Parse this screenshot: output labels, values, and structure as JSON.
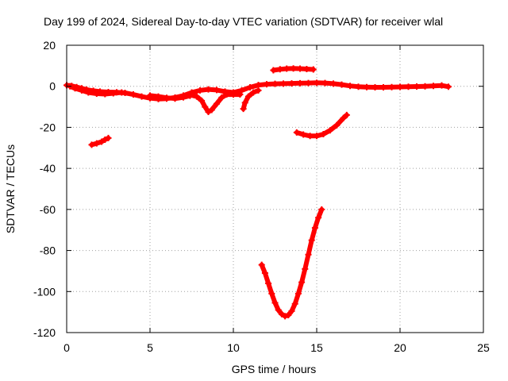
{
  "chart_data": {
    "type": "scatter",
    "title": "Day 199 of 2024, Sidereal Day-to-day VTEC variation (SDTVAR) for receiver wlal",
    "xlabel": "GPS time / hours",
    "ylabel": "SDTVAR / TECUs",
    "xlim": [
      0,
      25
    ],
    "ylim": [
      -120,
      20
    ],
    "xticks": [
      0,
      5,
      10,
      15,
      20,
      25
    ],
    "yticks": [
      20,
      0,
      -20,
      -40,
      -60,
      -80,
      -100,
      -120
    ],
    "grid": true,
    "series_color": "#ff0000",
    "series": [
      {
        "points": [
          [
            0.0,
            0.5
          ],
          [
            0.3,
            0.2
          ],
          [
            0.6,
            -0.4
          ],
          [
            0.9,
            -1.0
          ],
          [
            1.2,
            -1.6
          ],
          [
            1.6,
            -2.2
          ],
          [
            2.0,
            -2.6
          ],
          [
            2.5,
            -2.8
          ],
          [
            3.0,
            -2.9
          ],
          [
            3.5,
            -3.2
          ],
          [
            4.0,
            -4.0
          ],
          [
            4.5,
            -5.0
          ],
          [
            5.0,
            -5.8
          ],
          [
            5.5,
            -6.2
          ],
          [
            6.0,
            -6.0
          ],
          [
            6.5,
            -5.5
          ],
          [
            7.0,
            -4.5
          ],
          [
            7.5,
            -3.0
          ],
          [
            8.0,
            -2.0
          ],
          [
            8.5,
            -1.5
          ],
          [
            9.0,
            -1.8
          ],
          [
            9.5,
            -2.6
          ],
          [
            10.0,
            -3.0
          ],
          [
            10.5,
            -2.0
          ],
          [
            11.0,
            -0.5
          ],
          [
            11.5,
            0.6
          ],
          [
            12.0,
            1.0
          ],
          [
            12.5,
            1.2
          ],
          [
            13.0,
            1.3
          ],
          [
            13.5,
            1.4
          ],
          [
            14.0,
            1.5
          ],
          [
            14.5,
            1.6
          ],
          [
            15.0,
            1.7
          ],
          [
            15.5,
            1.6
          ],
          [
            16.0,
            1.3
          ],
          [
            16.5,
            0.8
          ],
          [
            17.0,
            0.2
          ],
          [
            17.5,
            -0.2
          ],
          [
            18.0,
            -0.4
          ],
          [
            18.5,
            -0.5
          ],
          [
            19.0,
            -0.5
          ],
          [
            19.5,
            -0.4
          ],
          [
            20.0,
            -0.3
          ],
          [
            20.5,
            -0.2
          ],
          [
            21.0,
            -0.1
          ],
          [
            21.5,
            0.0
          ],
          [
            22.0,
            0.2
          ],
          [
            22.5,
            0.4
          ],
          [
            22.9,
            -0.2
          ]
        ]
      },
      {
        "points": [
          [
            0.2,
            0.0
          ],
          [
            0.5,
            -1.0
          ],
          [
            0.9,
            -2.0
          ],
          [
            1.3,
            -3.0
          ],
          [
            1.8,
            -3.6
          ],
          [
            2.3,
            -3.8
          ],
          [
            2.8,
            -3.4
          ],
          [
            3.3,
            -3.0
          ]
        ]
      },
      {
        "points": [
          [
            5.0,
            -4.5
          ],
          [
            5.5,
            -5.0
          ],
          [
            6.0,
            -5.6
          ],
          [
            6.5,
            -6.0
          ],
          [
            7.0,
            -5.4
          ],
          [
            7.4,
            -4.6
          ]
        ]
      },
      {
        "points": [
          [
            7.4,
            -4.2
          ],
          [
            7.8,
            -5.0
          ],
          [
            8.1,
            -7.0
          ],
          [
            8.3,
            -10.0
          ],
          [
            8.5,
            -12.5
          ],
          [
            8.7,
            -11.5
          ],
          [
            9.0,
            -8.5
          ],
          [
            9.3,
            -5.5
          ],
          [
            9.6,
            -4.0
          ],
          [
            10.0,
            -4.0
          ],
          [
            10.4,
            -4.0
          ]
        ]
      },
      {
        "points": [
          [
            10.6,
            -11.0
          ],
          [
            10.7,
            -8.0
          ],
          [
            10.9,
            -5.0
          ],
          [
            11.2,
            -3.0
          ],
          [
            11.5,
            -2.0
          ]
        ]
      },
      {
        "points": [
          [
            1.5,
            -28.5
          ],
          [
            1.8,
            -27.8
          ],
          [
            2.1,
            -27.0
          ],
          [
            2.3,
            -26.0
          ],
          [
            2.5,
            -25.2
          ]
        ]
      },
      {
        "points": [
          [
            12.4,
            7.8
          ],
          [
            12.8,
            8.3
          ],
          [
            13.2,
            8.6
          ],
          [
            13.6,
            8.7
          ],
          [
            14.0,
            8.6
          ],
          [
            14.4,
            8.4
          ],
          [
            14.8,
            8.2
          ]
        ]
      },
      {
        "points": [
          [
            13.8,
            -22.5
          ],
          [
            14.2,
            -23.5
          ],
          [
            14.6,
            -24.2
          ],
          [
            15.0,
            -24.2
          ],
          [
            15.4,
            -23.3
          ],
          [
            15.8,
            -21.5
          ],
          [
            16.2,
            -19.0
          ],
          [
            16.6,
            -15.5
          ],
          [
            16.8,
            -14.0
          ]
        ]
      },
      {
        "points": [
          [
            11.7,
            -87.0
          ],
          [
            11.9,
            -91.0
          ],
          [
            12.1,
            -96.0
          ],
          [
            12.3,
            -101.0
          ],
          [
            12.5,
            -105.5
          ],
          [
            12.7,
            -109.0
          ],
          [
            12.9,
            -111.0
          ],
          [
            13.1,
            -112.0
          ],
          [
            13.3,
            -111.5
          ],
          [
            13.5,
            -109.5
          ],
          [
            13.7,
            -106.0
          ],
          [
            13.9,
            -101.0
          ],
          [
            14.1,
            -95.5
          ],
          [
            14.3,
            -89.0
          ],
          [
            14.5,
            -82.0
          ],
          [
            14.7,
            -75.0
          ],
          [
            14.9,
            -69.0
          ],
          [
            15.1,
            -64.0
          ],
          [
            15.3,
            -60.0
          ]
        ]
      }
    ]
  }
}
